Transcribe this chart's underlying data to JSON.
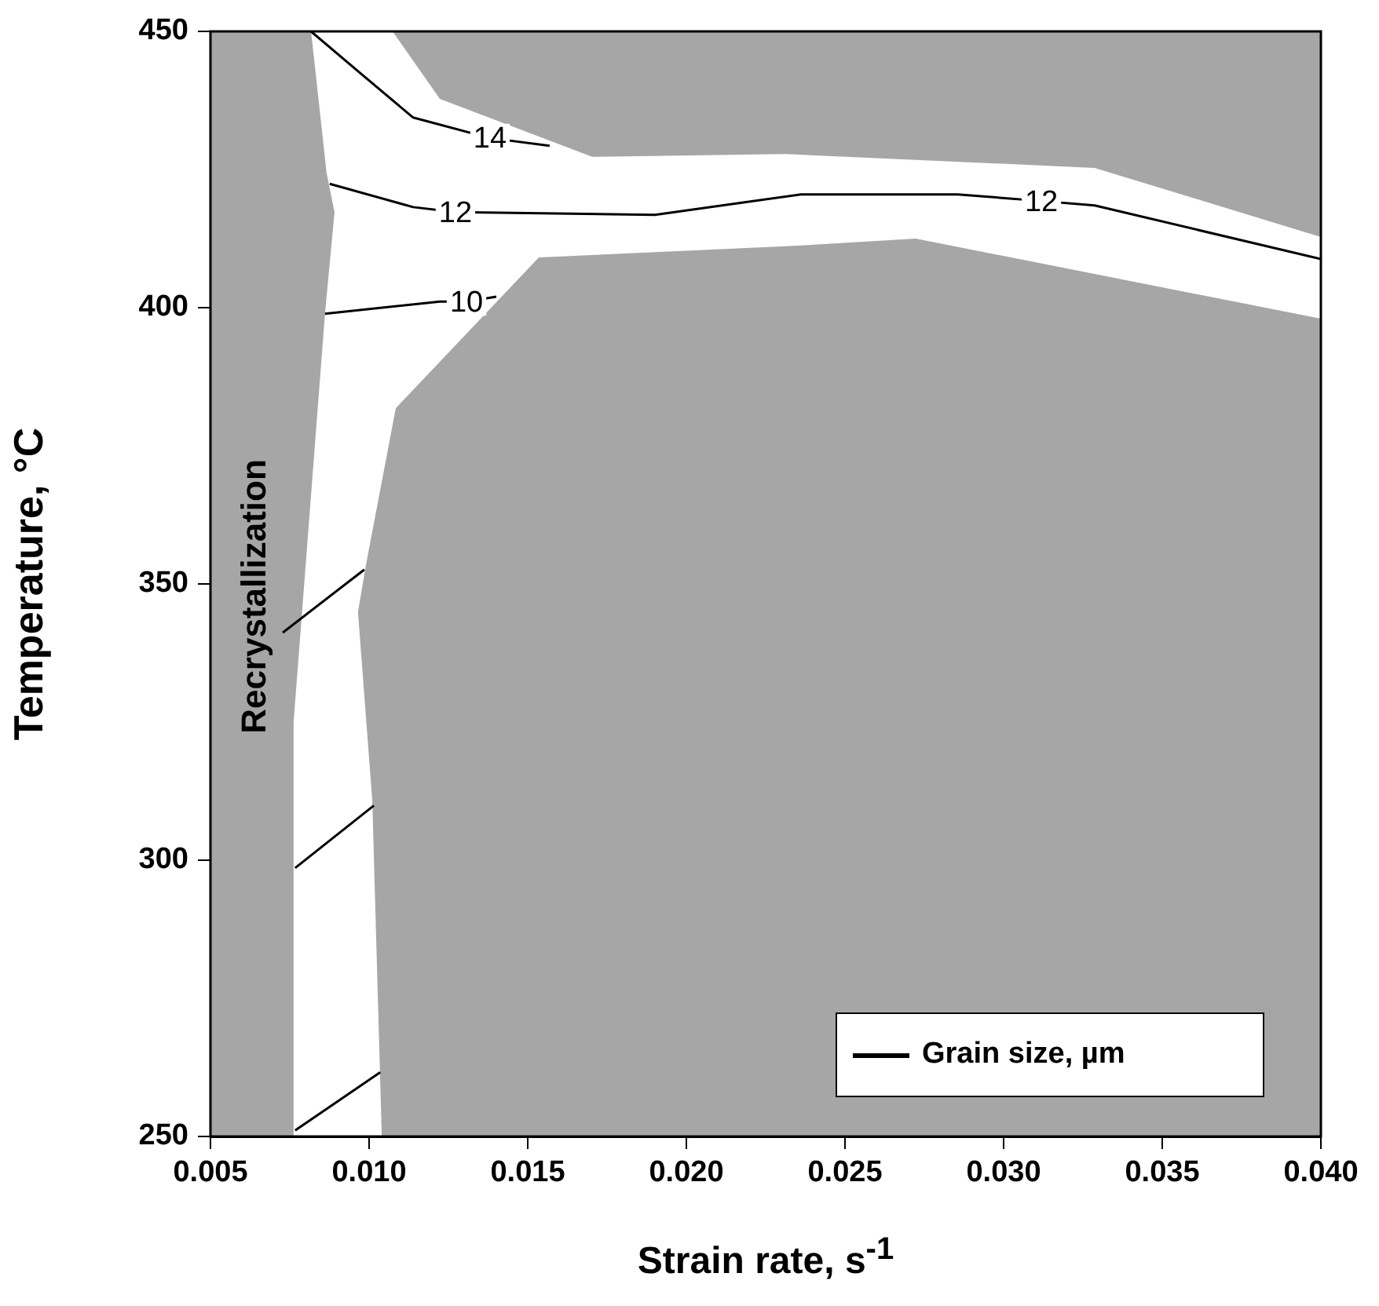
{
  "chart_data": {
    "type": "line",
    "xlabel": "Strain rate, s$^{-1}$",
    "ylabel": "Temperature, °C",
    "xlim": [
      0.005,
      0.04
    ],
    "ylim": [
      250,
      450
    ],
    "xticks": [
      {
        "value": 0.005,
        "label": "0.005"
      },
      {
        "value": 0.01,
        "label": "0.010"
      },
      {
        "value": 0.015,
        "label": "0.015"
      },
      {
        "value": 0.02,
        "label": "0.020"
      },
      {
        "value": 0.025,
        "label": "0.025"
      },
      {
        "value": 0.03,
        "label": "0.030"
      },
      {
        "value": 0.035,
        "label": "0.035"
      },
      {
        "value": 0.04,
        "label": "0.040"
      }
    ],
    "yticks": [
      250,
      300,
      350,
      400,
      450
    ],
    "grid": false,
    "legend": "bottom right",
    "marker": "none",
    "line_style": "solid",
    "series": [
      {
        "type": "area",
        "color": "#a6a6a6",
        "x": [
          0.005,
          0.00817,
          0.00866,
          0.00891,
          0.00861,
          0.00762,
          0.00762,
          0.005
        ],
        "values": [
          450,
          450,
          424.4,
          417.3,
          398.9,
          325,
          250,
          250
        ]
      },
      {
        "type": "area",
        "color": "#a6a6a6",
        "x": [
          0.01074,
          0.01223,
          0.01703,
          0.02312,
          0.03287,
          0.04,
          0.04
        ],
        "values": [
          450,
          437.8,
          427.3,
          427.8,
          425.3,
          412.8,
          450
        ]
      },
      {
        "type": "area",
        "color": "#a6a6a6",
        "x": [
          0.0104,
          0.0101,
          0.00965,
          0.0099,
          0.01084,
          0.01535,
          0.02312,
          0.02723,
          0.04,
          0.04
        ],
        "values": [
          250,
          310.8,
          344.9,
          353.4,
          381.8,
          409.1,
          411.1,
          412.5,
          398,
          250
        ]
      },
      {
        "type": "line",
        "name": "Grain size, µm",
        "color": "#000000",
        "x": [
          0.00817,
          0.00975,
          0.01139,
          0.01381,
          0.01569
        ],
        "values": [
          450,
          442.3,
          434.4,
          430.7,
          429.3
        ]
      },
      {
        "type": "line",
        "color": "#000000",
        "x": [
          0.00876,
          0.01139,
          0.01272,
          0.01901,
          0.02361,
          0.02856,
          0.03119,
          0.03287,
          0.04
        ],
        "values": [
          422.4,
          418.2,
          417.3,
          416.8,
          420.5,
          420.5,
          419.3,
          418.5,
          408.8
        ]
      },
      {
        "type": "line",
        "color": "#000000",
        "x": [
          0.00861,
          0.01223,
          0.01307,
          0.01401
        ],
        "values": [
          398.9,
          401.1,
          401.1,
          402
        ]
      },
      {
        "type": "line",
        "color": "#000000",
        "x": [
          0.00728,
          0.00985
        ],
        "values": [
          341.2,
          352.6
        ]
      },
      {
        "type": "line",
        "color": "#000000",
        "x": [
          0.00767,
          0.01015
        ],
        "values": [
          298.6,
          309.9
        ]
      },
      {
        "type": "line",
        "color": "#000000",
        "x": [
          0.00767,
          0.01035
        ],
        "values": [
          251.1,
          261.6
        ]
      }
    ],
    "annotations": [
      {
        "text": "14",
        "x": 0.01381,
        "y": 430.7
      },
      {
        "text": "12",
        "x": 0.01272,
        "y": 417.3
      },
      {
        "text": "12",
        "x": 0.03119,
        "y": 419.3
      },
      {
        "text": "10",
        "x": 0.01307,
        "y": 401.1
      },
      "Recrystallization"
    ]
  }
}
